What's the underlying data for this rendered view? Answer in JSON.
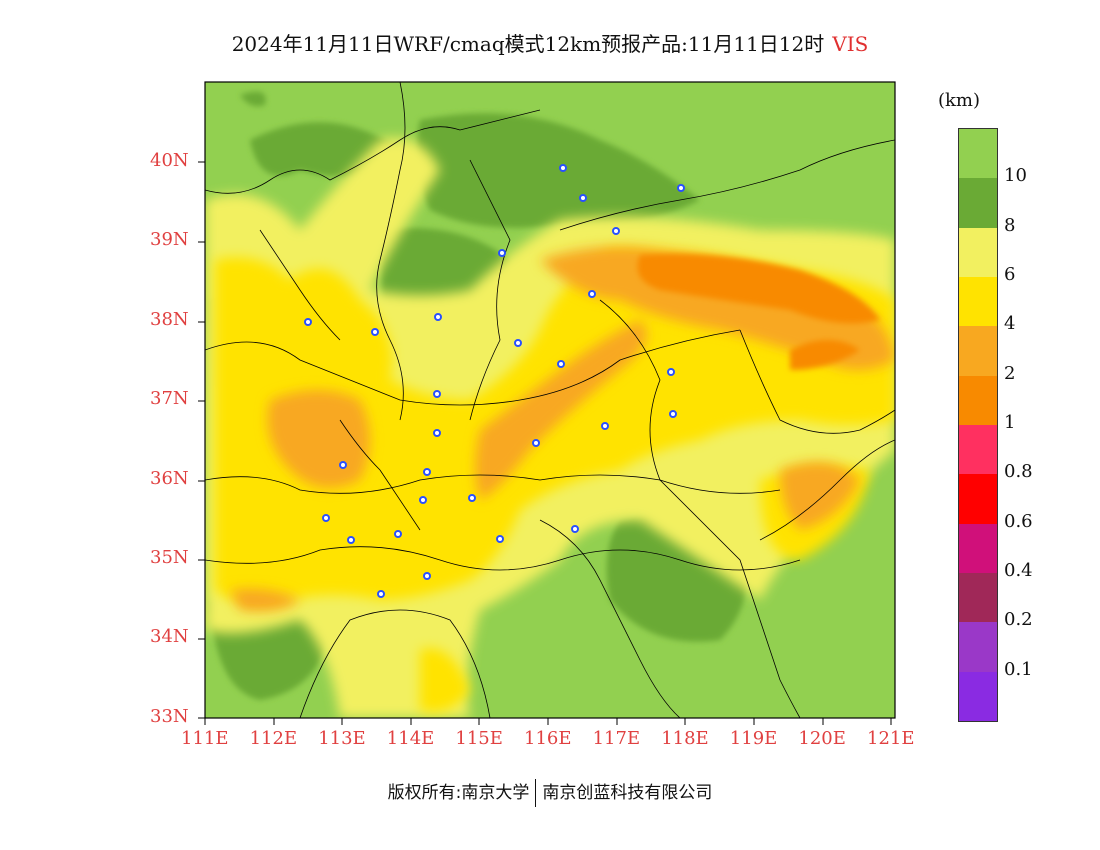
{
  "title": {
    "main": "2024年11月11日WRF/cmaq模式12km预报产品:11月11日12时",
    "variable": "VIS"
  },
  "legend": {
    "unit": "(km)",
    "labels": [
      "10",
      "8",
      "6",
      "4",
      "2",
      "1",
      "0.8",
      "0.6",
      "0.4",
      "0.2",
      "0.1"
    ],
    "colors": [
      "#92d050",
      "#6aaa35",
      "#f2f060",
      "#ffe300",
      "#f8a820",
      "#f88a00",
      "#ff3060",
      "#ff0000",
      "#d0107a",
      "#a02858",
      "#9a38c8",
      "#8a2be2"
    ]
  },
  "axes": {
    "x_ticks": [
      "111E",
      "112E",
      "113E",
      "114E",
      "115E",
      "116E",
      "117E",
      "118E",
      "119E",
      "120E",
      "121E"
    ],
    "y_ticks": [
      "40N",
      "39N",
      "38N",
      "37N",
      "36N",
      "35N",
      "34N",
      "33N"
    ]
  },
  "colors": {
    "axis_label": "#e04040",
    "border": "#000000",
    "station": "#2850ff"
  },
  "footer": {
    "left": "版权所有:南京大学",
    "right": "南京创蓝科技有限公司"
  }
}
